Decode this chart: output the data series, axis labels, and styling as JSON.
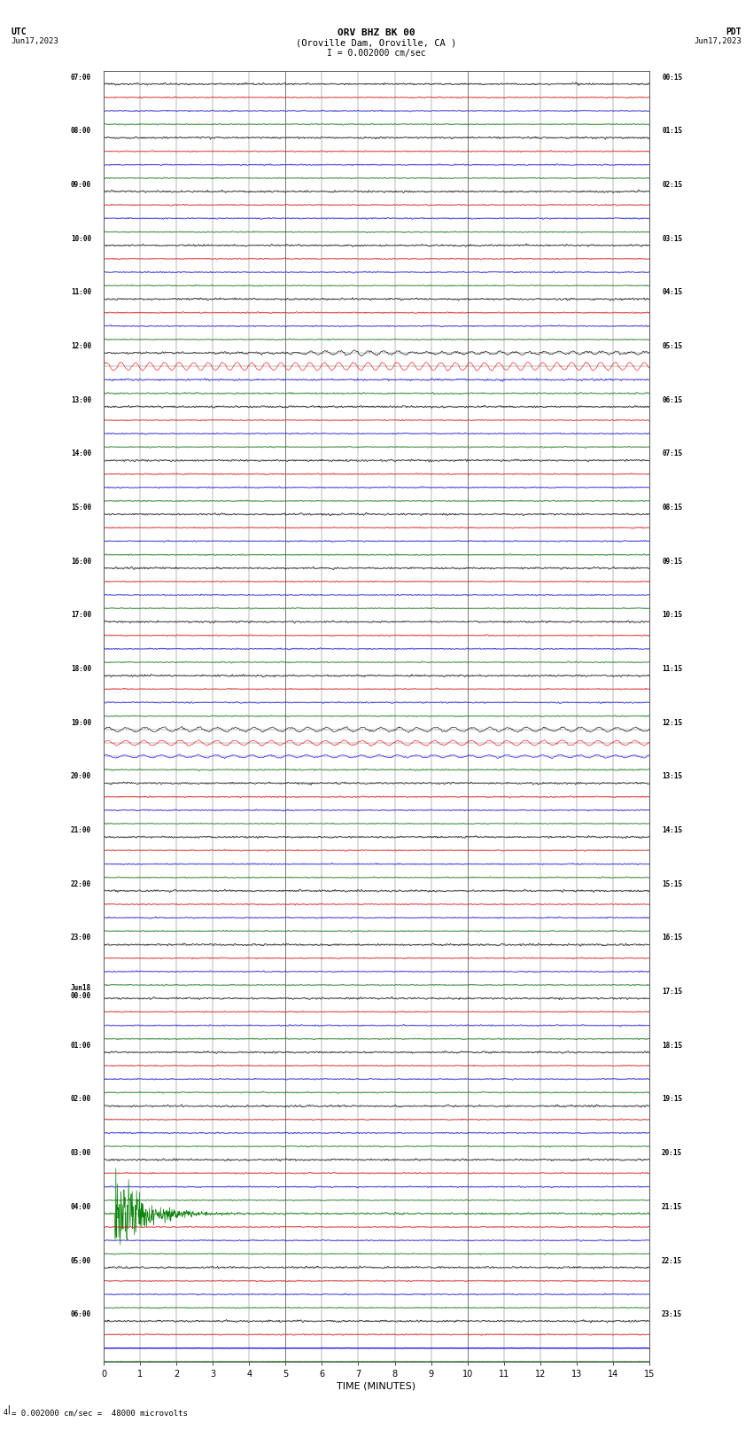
{
  "title_line1": "ORV BHZ BK 00",
  "title_line2": "(Oroville Dam, Oroville, CA )",
  "scale_label": "I = 0.002000 cm/sec",
  "xlabel": "TIME (MINUTES)",
  "bottom_note": "= 0.002000 cm/sec =  48000 microvolts",
  "utc_labels": [
    [
      "07:00",
      0
    ],
    [
      "08:00",
      4
    ],
    [
      "09:00",
      8
    ],
    [
      "10:00",
      12
    ],
    [
      "11:00",
      16
    ],
    [
      "12:00",
      20
    ],
    [
      "13:00",
      24
    ],
    [
      "14:00",
      28
    ],
    [
      "15:00",
      32
    ],
    [
      "16:00",
      36
    ],
    [
      "17:00",
      40
    ],
    [
      "18:00",
      44
    ],
    [
      "19:00",
      48
    ],
    [
      "20:00",
      52
    ],
    [
      "21:00",
      56
    ],
    [
      "22:00",
      60
    ],
    [
      "23:00",
      64
    ],
    [
      "Jun18\n00:00",
      68
    ],
    [
      "01:00",
      72
    ],
    [
      "02:00",
      76
    ],
    [
      "03:00",
      80
    ],
    [
      "04:00",
      84
    ],
    [
      "05:00",
      88
    ],
    [
      "06:00",
      92
    ]
  ],
  "pdt_labels": [
    [
      "00:15",
      0
    ],
    [
      "01:15",
      4
    ],
    [
      "02:15",
      8
    ],
    [
      "03:15",
      12
    ],
    [
      "04:15",
      16
    ],
    [
      "05:15",
      20
    ],
    [
      "06:15",
      24
    ],
    [
      "07:15",
      28
    ],
    [
      "08:15",
      32
    ],
    [
      "09:15",
      36
    ],
    [
      "10:15",
      40
    ],
    [
      "11:15",
      44
    ],
    [
      "12:15",
      48
    ],
    [
      "13:15",
      52
    ],
    [
      "14:15",
      56
    ],
    [
      "15:15",
      60
    ],
    [
      "16:15",
      64
    ],
    [
      "17:15",
      68
    ],
    [
      "18:15",
      72
    ],
    [
      "19:15",
      76
    ],
    [
      "20:15",
      80
    ],
    [
      "21:15",
      84
    ],
    [
      "22:15",
      88
    ],
    [
      "23:15",
      92
    ]
  ],
  "n_rows": 96,
  "n_cols": 15,
  "bg_color": "#ffffff",
  "grid_color": "#888888",
  "trace_color_cycle": [
    "#000000",
    "#ff0000",
    "#0000ff",
    "#008000"
  ],
  "noise_amplitude_black": 0.06,
  "noise_amplitude_red": 0.04,
  "noise_amplitude_blue": 0.04,
  "noise_amplitude_green": 0.04,
  "special_black_rows": [
    20,
    48
  ],
  "special_red_rows": [
    21,
    49
  ],
  "seismic_row": 84,
  "seismic_amplitude": 1.8,
  "last_blue_row": 94
}
